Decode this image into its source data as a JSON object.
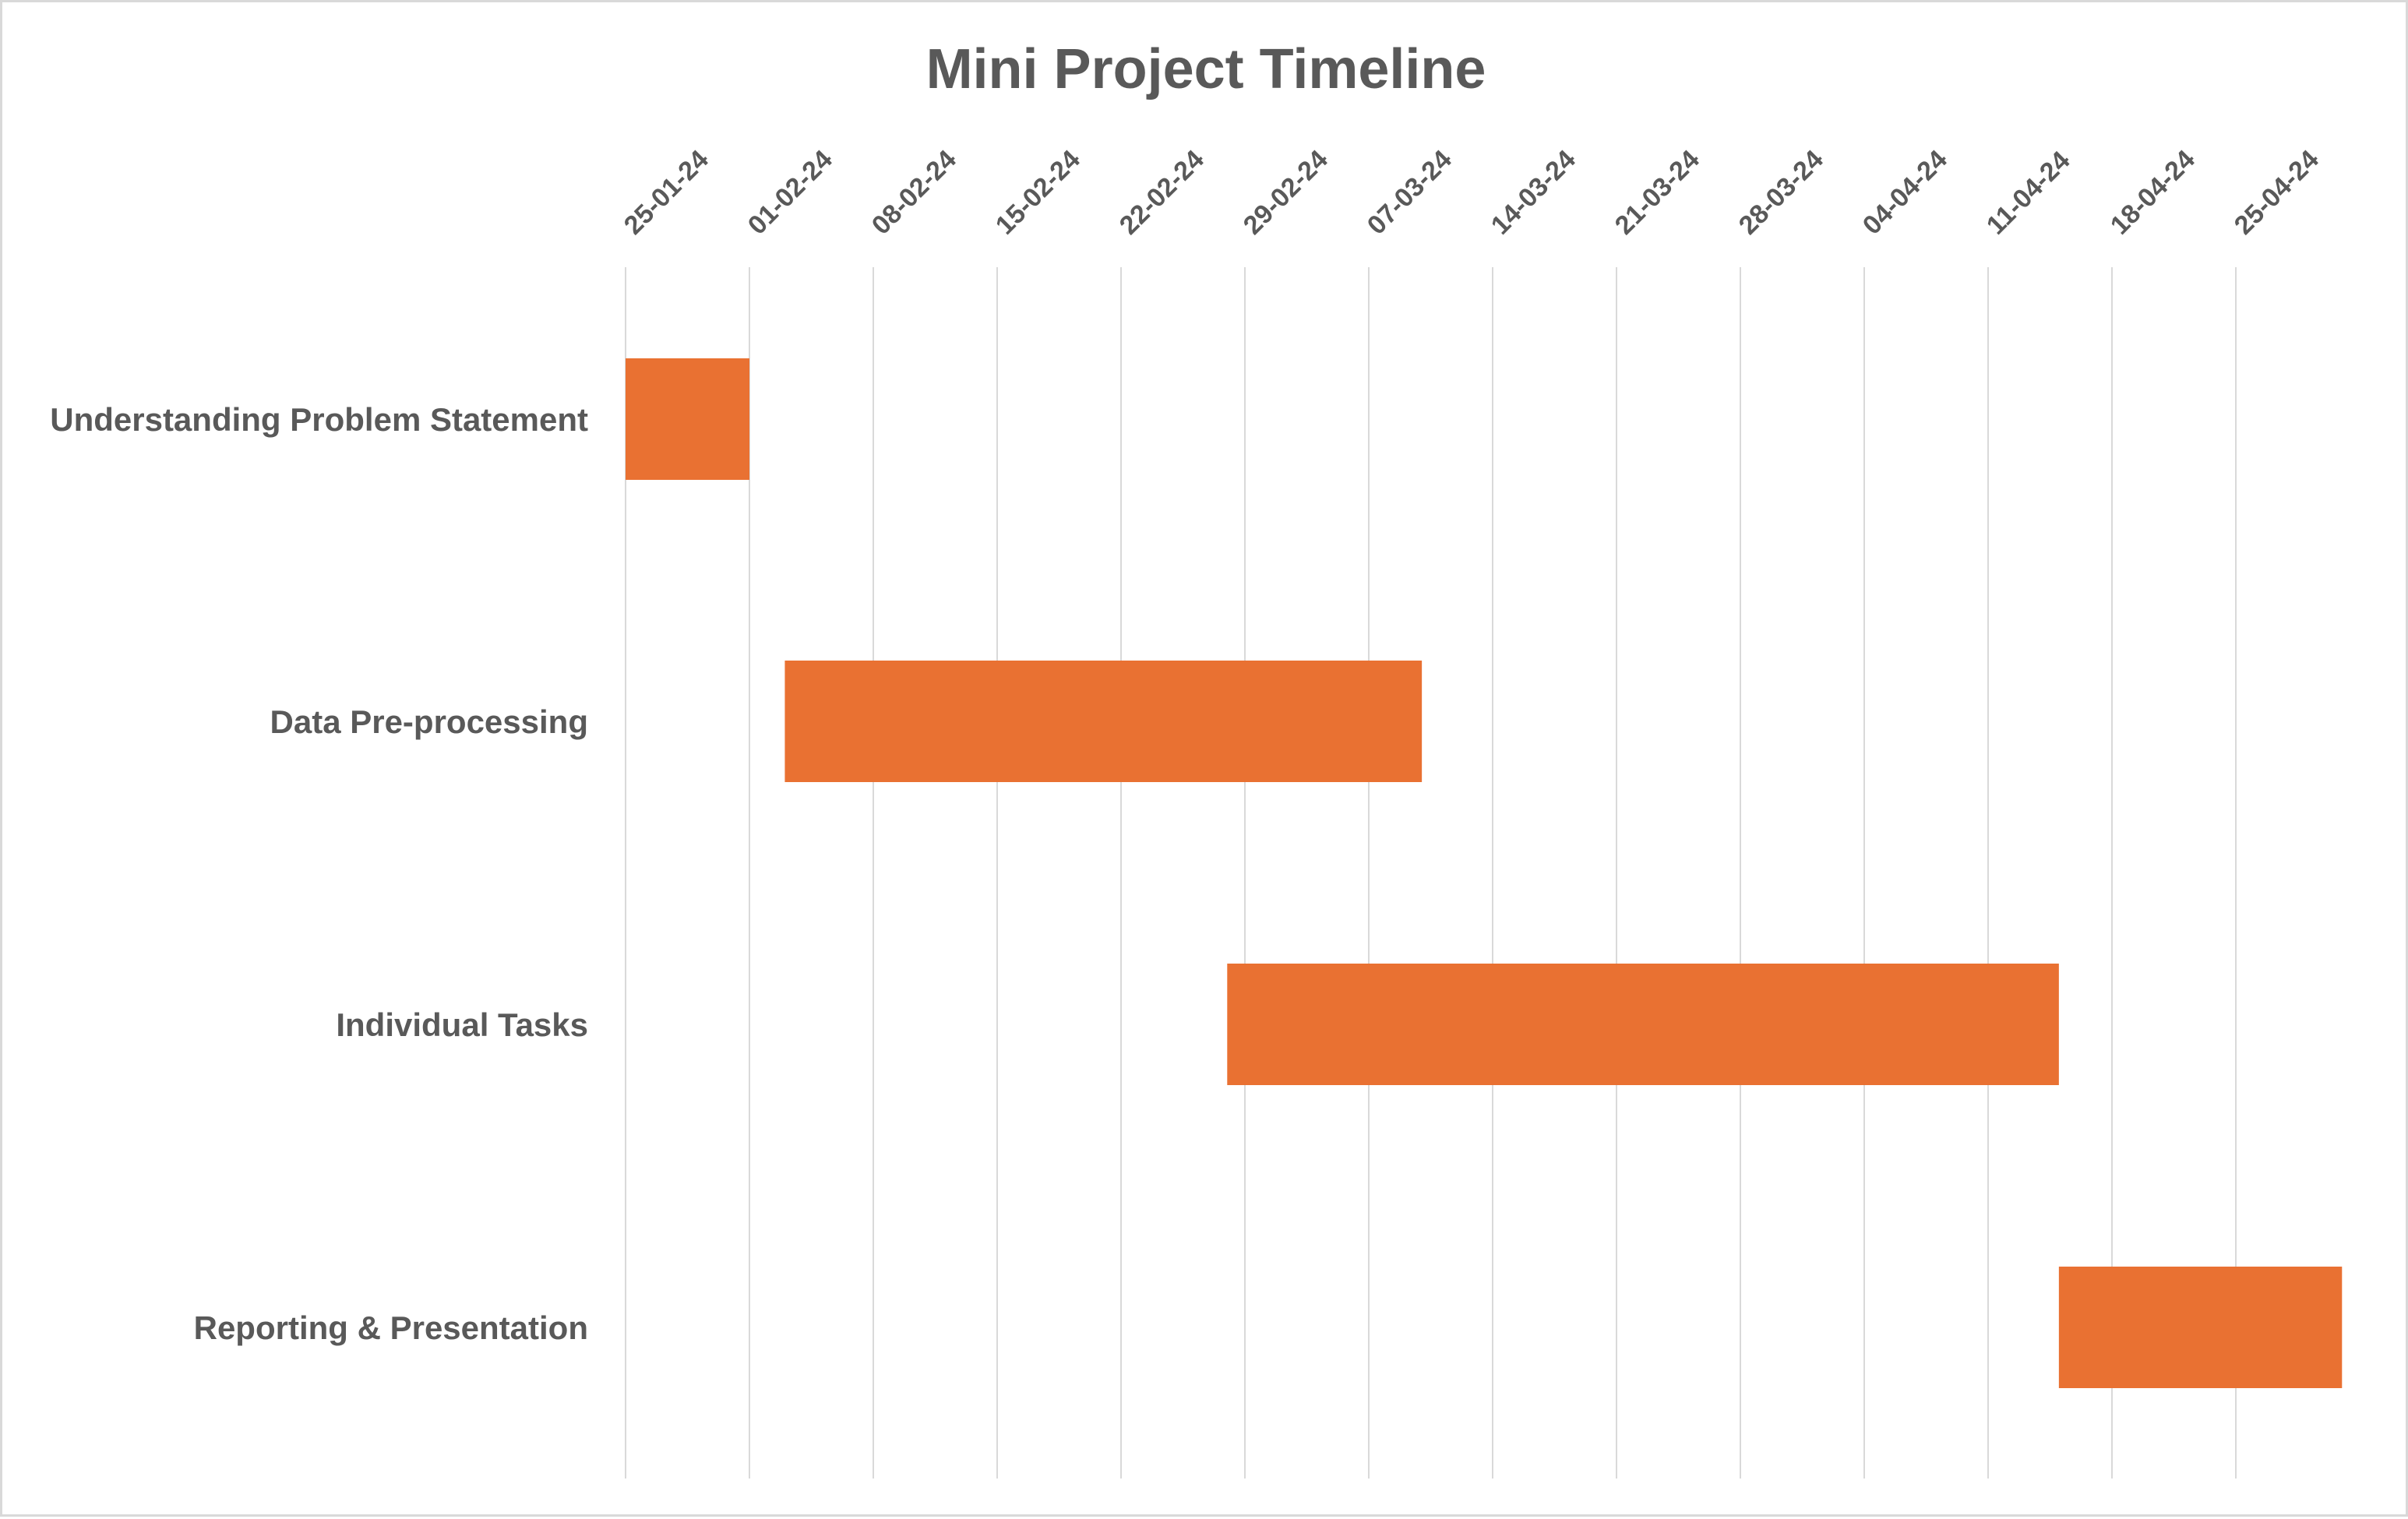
{
  "chart_data": {
    "type": "bar",
    "orientation": "horizontal",
    "subtype": "gantt",
    "title": "Mini Project Timeline",
    "xlabel": "",
    "ylabel": "",
    "x_ticks": [
      "25-01-24",
      "01-02-24",
      "08-02-24",
      "15-02-24",
      "22-02-24",
      "29-02-24",
      "07-03-24",
      "14-03-24",
      "21-03-24",
      "28-03-24",
      "04-04-24",
      "11-04-24",
      "18-04-24",
      "25-04-24"
    ],
    "xlim": [
      "2024-01-25",
      "2024-04-25"
    ],
    "categories": [
      "Understanding Problem Statement",
      "Data Pre-processing",
      "Individual Tasks",
      "Reporting & Presentation"
    ],
    "tasks": [
      {
        "name": "Understanding Problem Statement",
        "start": "2024-01-25",
        "end": "2024-02-01"
      },
      {
        "name": "Data Pre-processing",
        "start": "2024-02-03",
        "end": "2024-03-10"
      },
      {
        "name": "Individual Tasks",
        "start": "2024-02-28",
        "end": "2024-04-15"
      },
      {
        "name": "Reporting & Presentation",
        "start": "2024-04-15",
        "end": "2024-05-01"
      }
    ],
    "grid": true,
    "legend": "none",
    "bar_color": "#E97132",
    "grid_color": "#D9D9D9",
    "text_color": "#595959"
  }
}
